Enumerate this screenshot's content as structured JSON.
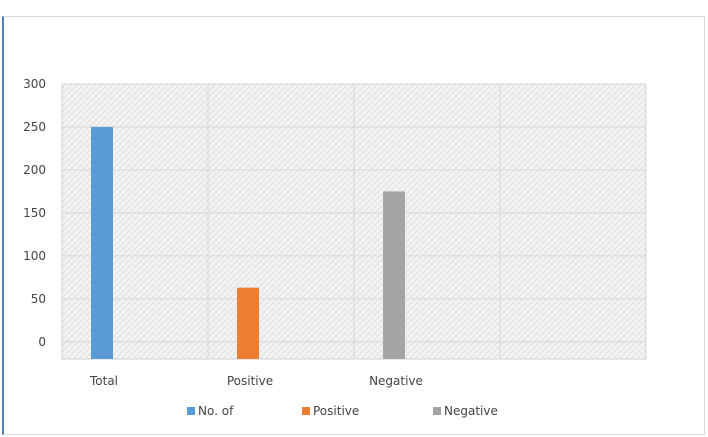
{
  "chart_data": {
    "type": "bar",
    "categories": [
      "Total",
      "Positive",
      "Negative",
      ""
    ],
    "series": [
      {
        "name": "No. of",
        "color": "#5b9bd5",
        "category_index": 0,
        "value": 250
      },
      {
        "name": "Positive",
        "color": "#ed7d31",
        "category_index": 1,
        "value": 63
      },
      {
        "name": "Negative",
        "color": "#a5a5a5",
        "category_index": 2,
        "value": 175
      }
    ],
    "yticks": [
      0,
      50,
      100,
      150,
      200,
      250,
      300
    ],
    "ylim": [
      -20,
      300
    ],
    "grid": true,
    "plot_background": "hatched light gray",
    "legend_position": "bottom"
  }
}
